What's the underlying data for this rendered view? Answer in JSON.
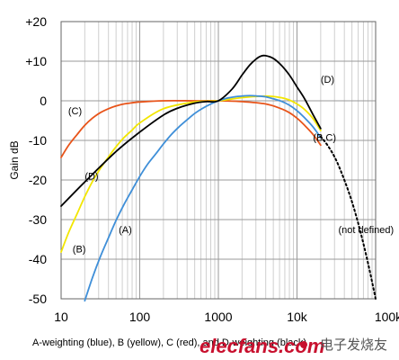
{
  "chart_data": {
    "type": "line",
    "xscale": "log",
    "xlim": [
      10,
      100000
    ],
    "ylim": [
      -50,
      20
    ],
    "ylabel": "Gain dB",
    "grid": true,
    "x_ticks": [
      10,
      100,
      1000,
      10000,
      100000
    ],
    "x_tick_labels": [
      "10",
      "100",
      "1000",
      "10k",
      "100k"
    ],
    "y_ticks": [
      20,
      10,
      0,
      -10,
      -20,
      -30,
      -40,
      -50
    ],
    "y_tick_labels": [
      "+20",
      "+10",
      "0",
      "-10",
      "-20",
      "-30",
      "-40",
      "-50"
    ],
    "series": [
      {
        "key": "C",
        "color": "#e8541a",
        "dashed": false,
        "x": [
          10,
          12.5,
          16,
          20,
          25,
          31.5,
          40,
          50,
          63,
          80,
          100,
          200,
          500,
          1000,
          2000,
          4000,
          6300,
          8000,
          10000,
          12500,
          16000,
          20000
        ],
        "y": [
          -14.3,
          -11.2,
          -8.5,
          -6.2,
          -4.4,
          -3.0,
          -2.0,
          -1.3,
          -0.8,
          -0.5,
          -0.3,
          0,
          0,
          0,
          -0.2,
          -0.8,
          -2.0,
          -3.0,
          -4.4,
          -6.2,
          -8.5,
          -11.2
        ]
      },
      {
        "key": "B",
        "color": "#f2e600",
        "dashed": false,
        "x": [
          10,
          12.5,
          16,
          20,
          25,
          31.5,
          40,
          50,
          63,
          80,
          100,
          200,
          500,
          1000,
          2000,
          4000,
          6300,
          8000,
          10000,
          12500,
          16000,
          20000
        ],
        "y": [
          -38.2,
          -33.2,
          -28.5,
          -24.2,
          -20.4,
          -17.1,
          -14.2,
          -11.6,
          -9.3,
          -7.4,
          -5.6,
          -2.0,
          -0.3,
          0,
          0.8,
          1.2,
          0.8,
          0.2,
          -0.8,
          -2.2,
          -4.5,
          -7.5
        ]
      },
      {
        "key": "A",
        "color": "#3f8fd8",
        "dashed": false,
        "x": [
          20,
          25,
          31.5,
          40,
          50,
          63,
          80,
          100,
          125,
          160,
          200,
          250,
          315,
          400,
          500,
          630,
          800,
          1000,
          1250,
          1600,
          2000,
          2500,
          3150,
          4000,
          5000,
          6300,
          8000,
          10000,
          12500,
          16000,
          20000
        ],
        "y": [
          -50.5,
          -44.7,
          -39.4,
          -34.6,
          -30.2,
          -26.2,
          -22.5,
          -19.1,
          -16.1,
          -13.4,
          -10.9,
          -8.6,
          -6.6,
          -4.8,
          -3.2,
          -1.9,
          -0.8,
          0,
          0.6,
          1.0,
          1.2,
          1.3,
          1.2,
          1.0,
          0.5,
          -0.1,
          -1.1,
          -2.5,
          -4.3,
          -6.6,
          -9.3
        ]
      },
      {
        "key": "D",
        "color": "#000000",
        "dashed": false,
        "x": [
          10,
          20,
          50,
          100,
          200,
          300,
          500,
          700,
          1000,
          1500,
          2000,
          2500,
          3000,
          3500,
          4000,
          5000,
          6300,
          8000,
          10000,
          12500,
          16000,
          20000
        ],
        "y": [
          -26.6,
          -20.5,
          -12.8,
          -7.9,
          -3.6,
          -1.9,
          -0.6,
          -0.2,
          0,
          3.0,
          6.5,
          9.0,
          10.5,
          11.3,
          11.4,
          10.7,
          9.0,
          6.5,
          3.5,
          0.5,
          -3.5,
          -7.0
        ]
      },
      {
        "key": "not-defined",
        "color": "#000000",
        "dashed": true,
        "x": [
          20000,
          25000,
          31500,
          40000,
          50000,
          63000,
          80000,
          100000
        ],
        "y": [
          -9.0,
          -11.5,
          -15.0,
          -20.0,
          -25.5,
          -32.5,
          -41.0,
          -50.0
        ]
      }
    ],
    "annotations": [
      {
        "text": "(C)",
        "x": 12.3,
        "y": -2.5
      },
      {
        "text": "(D)",
        "x": 20,
        "y": -19
      },
      {
        "text": "(A)",
        "x": 54,
        "y": -32.5
      },
      {
        "text": "(B)",
        "x": 14,
        "y": -37.4
      },
      {
        "text": "(D)",
        "x": 20000,
        "y": 5.5
      },
      {
        "text": "(B,C)",
        "x": 16000,
        "y": -9.2
      },
      {
        "text": "(not defined)",
        "x": 33500,
        "y": -32.5
      }
    ],
    "caption": "A-weighting (blue), B (yellow), C (red), and D-weighting (black)"
  },
  "watermark": {
    "text": "elecfans.com",
    "text_cn": "电子发烧友"
  }
}
